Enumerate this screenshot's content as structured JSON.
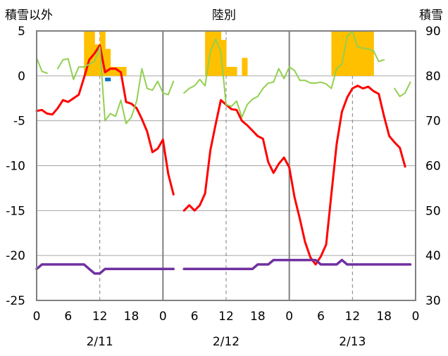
{
  "chart_data": {
    "type": "line",
    "title": "陸別",
    "y_left_label": "積雪以外",
    "y_right_label": "積雪",
    "y_left": {
      "min": -25,
      "max": 5,
      "ticks": [
        5,
        0,
        -5,
        -10,
        -15,
        -20,
        -25
      ]
    },
    "y_right": {
      "min": 30,
      "max": 90,
      "ticks": [
        90,
        80,
        70,
        60,
        50,
        40,
        30
      ]
    },
    "x_ticks": [
      "0",
      "6",
      "12",
      "18",
      "0",
      "6",
      "12",
      "18",
      "0",
      "6",
      "12",
      "18",
      "0"
    ],
    "dates": [
      "2/11",
      "2/12",
      "2/13"
    ],
    "colors": {
      "temperature": "#ff0000",
      "green": "#92d050",
      "purple": "#7030a0",
      "snowfall": "#ffc000",
      "blue": "#0070c0",
      "frame": "#808080"
    },
    "series": [
      {
        "key": "temperature",
        "axis": "left",
        "points": [
          [
            0,
            -3.9
          ],
          [
            1,
            -3.8
          ],
          [
            2,
            -4.2
          ],
          [
            3,
            -4.3
          ],
          [
            4,
            -3.6
          ],
          [
            5,
            -2.7
          ],
          [
            6,
            -2.9
          ],
          [
            7,
            -2.5
          ],
          [
            8,
            -2.1
          ],
          [
            9,
            -0.2
          ],
          [
            10,
            1.8
          ],
          [
            11,
            2.5
          ],
          [
            12,
            3.4
          ],
          [
            13,
            0.4
          ],
          [
            14,
            0.8
          ],
          [
            15,
            0.8
          ],
          [
            16,
            0.4
          ],
          [
            17,
            -2.9
          ],
          [
            18,
            -3.1
          ],
          [
            19,
            -3.6
          ],
          [
            20,
            -4.8
          ],
          [
            21,
            -6.2
          ],
          [
            22,
            -8.5
          ],
          [
            23,
            -8.1
          ],
          [
            24,
            -7.1
          ],
          [
            25,
            -10.9
          ],
          [
            26,
            -13.2
          ],
          [
            null,
            null
          ],
          [
            28,
            -15
          ],
          [
            29,
            -14.4
          ],
          [
            30,
            -15
          ],
          [
            31,
            -14.4
          ],
          [
            32,
            -13.1
          ],
          [
            33,
            -8.3
          ],
          [
            34,
            -5.4
          ],
          [
            35,
            -2.7
          ],
          [
            36,
            -3.2
          ],
          [
            37,
            -3.7
          ],
          [
            38,
            -3.8
          ],
          [
            39,
            -5
          ],
          [
            40,
            -5.5
          ],
          [
            41,
            -6.1
          ],
          [
            42,
            -6.7
          ],
          [
            43,
            -7
          ],
          [
            44,
            -9.6
          ],
          [
            45,
            -10.8
          ],
          [
            46,
            -9.8
          ],
          [
            47,
            -9.1
          ],
          [
            48,
            -10.2
          ],
          [
            49,
            -13.5
          ],
          [
            50,
            -15.9
          ],
          [
            51,
            -18.5
          ],
          [
            52,
            -20.2
          ],
          [
            53,
            -21
          ],
          [
            54,
            -20.1
          ],
          [
            55,
            -18.8
          ],
          [
            56,
            -13.2
          ],
          [
            57,
            -7.6
          ],
          [
            58,
            -4
          ],
          [
            59,
            -2.4
          ],
          [
            60,
            -1.4
          ],
          [
            61,
            -1.1
          ],
          [
            62,
            -1.4
          ],
          [
            63,
            -1.2
          ],
          [
            64,
            -1.7
          ],
          [
            65,
            -2
          ],
          [
            66,
            -4.5
          ],
          [
            67,
            -6.7
          ],
          [
            68,
            -7.4
          ],
          [
            69,
            -8
          ],
          [
            70,
            -10.1
          ]
        ]
      },
      {
        "key": "green",
        "axis": "left",
        "points": [
          [
            0,
            2
          ],
          [
            1,
            0.5
          ],
          [
            2,
            0.3
          ],
          [
            null,
            null
          ],
          [
            4,
            0.8
          ],
          [
            5,
            1.8
          ],
          [
            6,
            1.9
          ],
          [
            7,
            -0.4
          ],
          [
            8,
            1
          ],
          [
            9,
            1
          ],
          [
            10,
            1.3
          ],
          [
            11,
            1.6
          ],
          [
            12,
            3.2
          ],
          [
            13,
            -5
          ],
          [
            14,
            -4.2
          ],
          [
            15,
            -4.5
          ],
          [
            16,
            -2.7
          ],
          [
            17,
            -5.3
          ],
          [
            18,
            -4.6
          ],
          [
            19,
            -2.8
          ],
          [
            20,
            0.8
          ],
          [
            21,
            -1.4
          ],
          [
            22,
            -1.6
          ],
          [
            23,
            -0.6
          ],
          [
            24,
            -1.9
          ],
          [
            25,
            -2.1
          ],
          [
            26,
            -0.6
          ],
          [
            null,
            null
          ],
          [
            28,
            -1.9
          ],
          [
            29,
            -1.4
          ],
          [
            30,
            -1.1
          ],
          [
            31,
            -0.4
          ],
          [
            32,
            -1.1
          ],
          [
            33,
            2.7
          ],
          [
            34,
            4.1
          ],
          [
            35,
            2.7
          ],
          [
            36,
            -3.2
          ],
          [
            37,
            -3.4
          ],
          [
            38,
            -2.8
          ],
          [
            39,
            -4.6
          ],
          [
            40,
            -3.2
          ],
          [
            41,
            -2.6
          ],
          [
            42,
            -2.3
          ],
          [
            43,
            -1.4
          ],
          [
            44,
            -0.8
          ],
          [
            45,
            -0.7
          ],
          [
            46,
            0.8
          ],
          [
            47,
            -0.3
          ],
          [
            48,
            1
          ],
          [
            49,
            0.6
          ],
          [
            50,
            -0.5
          ],
          [
            51,
            -0.5
          ],
          [
            52,
            -0.8
          ],
          [
            53,
            -0.8
          ],
          [
            54,
            -0.7
          ],
          [
            55,
            -0.9
          ],
          [
            56,
            -1.4
          ],
          [
            57,
            0.8
          ],
          [
            58,
            1.3
          ],
          [
            59,
            4.4
          ],
          [
            60,
            5
          ],
          [
            61,
            3.2
          ],
          [
            62,
            3.1
          ],
          [
            63,
            3
          ],
          [
            64,
            2.8
          ],
          [
            65,
            1.6
          ],
          [
            66,
            1.8
          ],
          [
            null,
            null
          ],
          [
            68,
            -1.4
          ],
          [
            69,
            -2.3
          ],
          [
            70,
            -1.9
          ],
          [
            71,
            -0.7
          ]
        ]
      },
      {
        "key": "purple",
        "axis": "left",
        "points": [
          [
            0,
            -21.5
          ],
          [
            1,
            -21
          ],
          [
            8,
            -21
          ],
          [
            9,
            -21
          ],
          [
            10,
            -21.5
          ],
          [
            11,
            -22
          ],
          [
            12,
            -22
          ],
          [
            13,
            -21.5
          ],
          [
            26,
            -21.5
          ],
          [
            null,
            null
          ],
          [
            28,
            -21.5
          ],
          [
            41,
            -21.5
          ],
          [
            42,
            -21
          ],
          [
            44,
            -21
          ],
          [
            45,
            -20.5
          ],
          [
            53,
            -20.5
          ],
          [
            54,
            -21
          ],
          [
            57,
            -21
          ],
          [
            58,
            -20.5
          ],
          [
            59,
            -21
          ],
          [
            71,
            -21
          ]
        ]
      }
    ],
    "bars": [
      {
        "key": "snowfall",
        "axis": "left",
        "hour": 9.5,
        "from": 0,
        "to": 5
      },
      {
        "key": "snowfall",
        "axis": "left",
        "hour": 10.5,
        "from": 0,
        "to": 5
      },
      {
        "key": "snowfall",
        "axis": "left",
        "hour": 11.5,
        "from": 0,
        "to": 3.5
      },
      {
        "key": "snowfall",
        "axis": "left",
        "hour": 12.5,
        "from": 0,
        "to": 5
      },
      {
        "key": "snowfall",
        "axis": "left",
        "hour": 13.5,
        "from": 0,
        "to": 3
      },
      {
        "key": "snowfall",
        "axis": "left",
        "hour": 14.5,
        "from": 0,
        "to": 1
      },
      {
        "key": "snowfall",
        "axis": "left",
        "hour": 15.5,
        "from": 0,
        "to": 1
      },
      {
        "key": "snowfall",
        "axis": "left",
        "hour": 16.5,
        "from": 0,
        "to": 1
      },
      {
        "key": "blue",
        "axis": "left",
        "hour": 13.5,
        "from": -0.2,
        "to": -0.6
      },
      {
        "key": "snowfall",
        "axis": "left",
        "hour": 32.5,
        "from": 0,
        "to": 5
      },
      {
        "key": "snowfall",
        "axis": "left",
        "hour": 33.5,
        "from": 0,
        "to": 5
      },
      {
        "key": "snowfall",
        "axis": "left",
        "hour": 34.5,
        "from": 0,
        "to": 5
      },
      {
        "key": "snowfall",
        "axis": "left",
        "hour": 35.5,
        "from": 0,
        "to": 4
      },
      {
        "key": "snowfall",
        "axis": "left",
        "hour": 36.5,
        "from": 0,
        "to": 1
      },
      {
        "key": "snowfall",
        "axis": "left",
        "hour": 37.5,
        "from": 0,
        "to": 1
      },
      {
        "key": "snowfall",
        "axis": "left",
        "hour": 39.5,
        "from": 0,
        "to": 2
      },
      {
        "key": "snowfall",
        "axis": "left",
        "hour": 56.5,
        "from": 0,
        "to": 5
      },
      {
        "key": "snowfall",
        "axis": "left",
        "hour": 57.5,
        "from": 0,
        "to": 5
      },
      {
        "key": "snowfall",
        "axis": "left",
        "hour": 58.5,
        "from": 0,
        "to": 5
      },
      {
        "key": "snowfall",
        "axis": "left",
        "hour": 59.5,
        "from": 0,
        "to": 5
      },
      {
        "key": "snowfall",
        "axis": "left",
        "hour": 60.5,
        "from": 0,
        "to": 5
      },
      {
        "key": "snowfall",
        "axis": "left",
        "hour": 61.5,
        "from": 0,
        "to": 5
      },
      {
        "key": "snowfall",
        "axis": "left",
        "hour": 62.5,
        "from": 0,
        "to": 5
      },
      {
        "key": "snowfall",
        "axis": "left",
        "hour": 63.5,
        "from": 0,
        "to": 5
      }
    ],
    "x_range_hours": [
      0,
      72
    ],
    "day_boundaries_hours": [
      24,
      48
    ],
    "noon_lines_hours": [
      12,
      36,
      60
    ],
    "grid": {
      "horizontal": true,
      "day_separators": true,
      "noon_dashed": true
    },
    "legend": "none"
  }
}
